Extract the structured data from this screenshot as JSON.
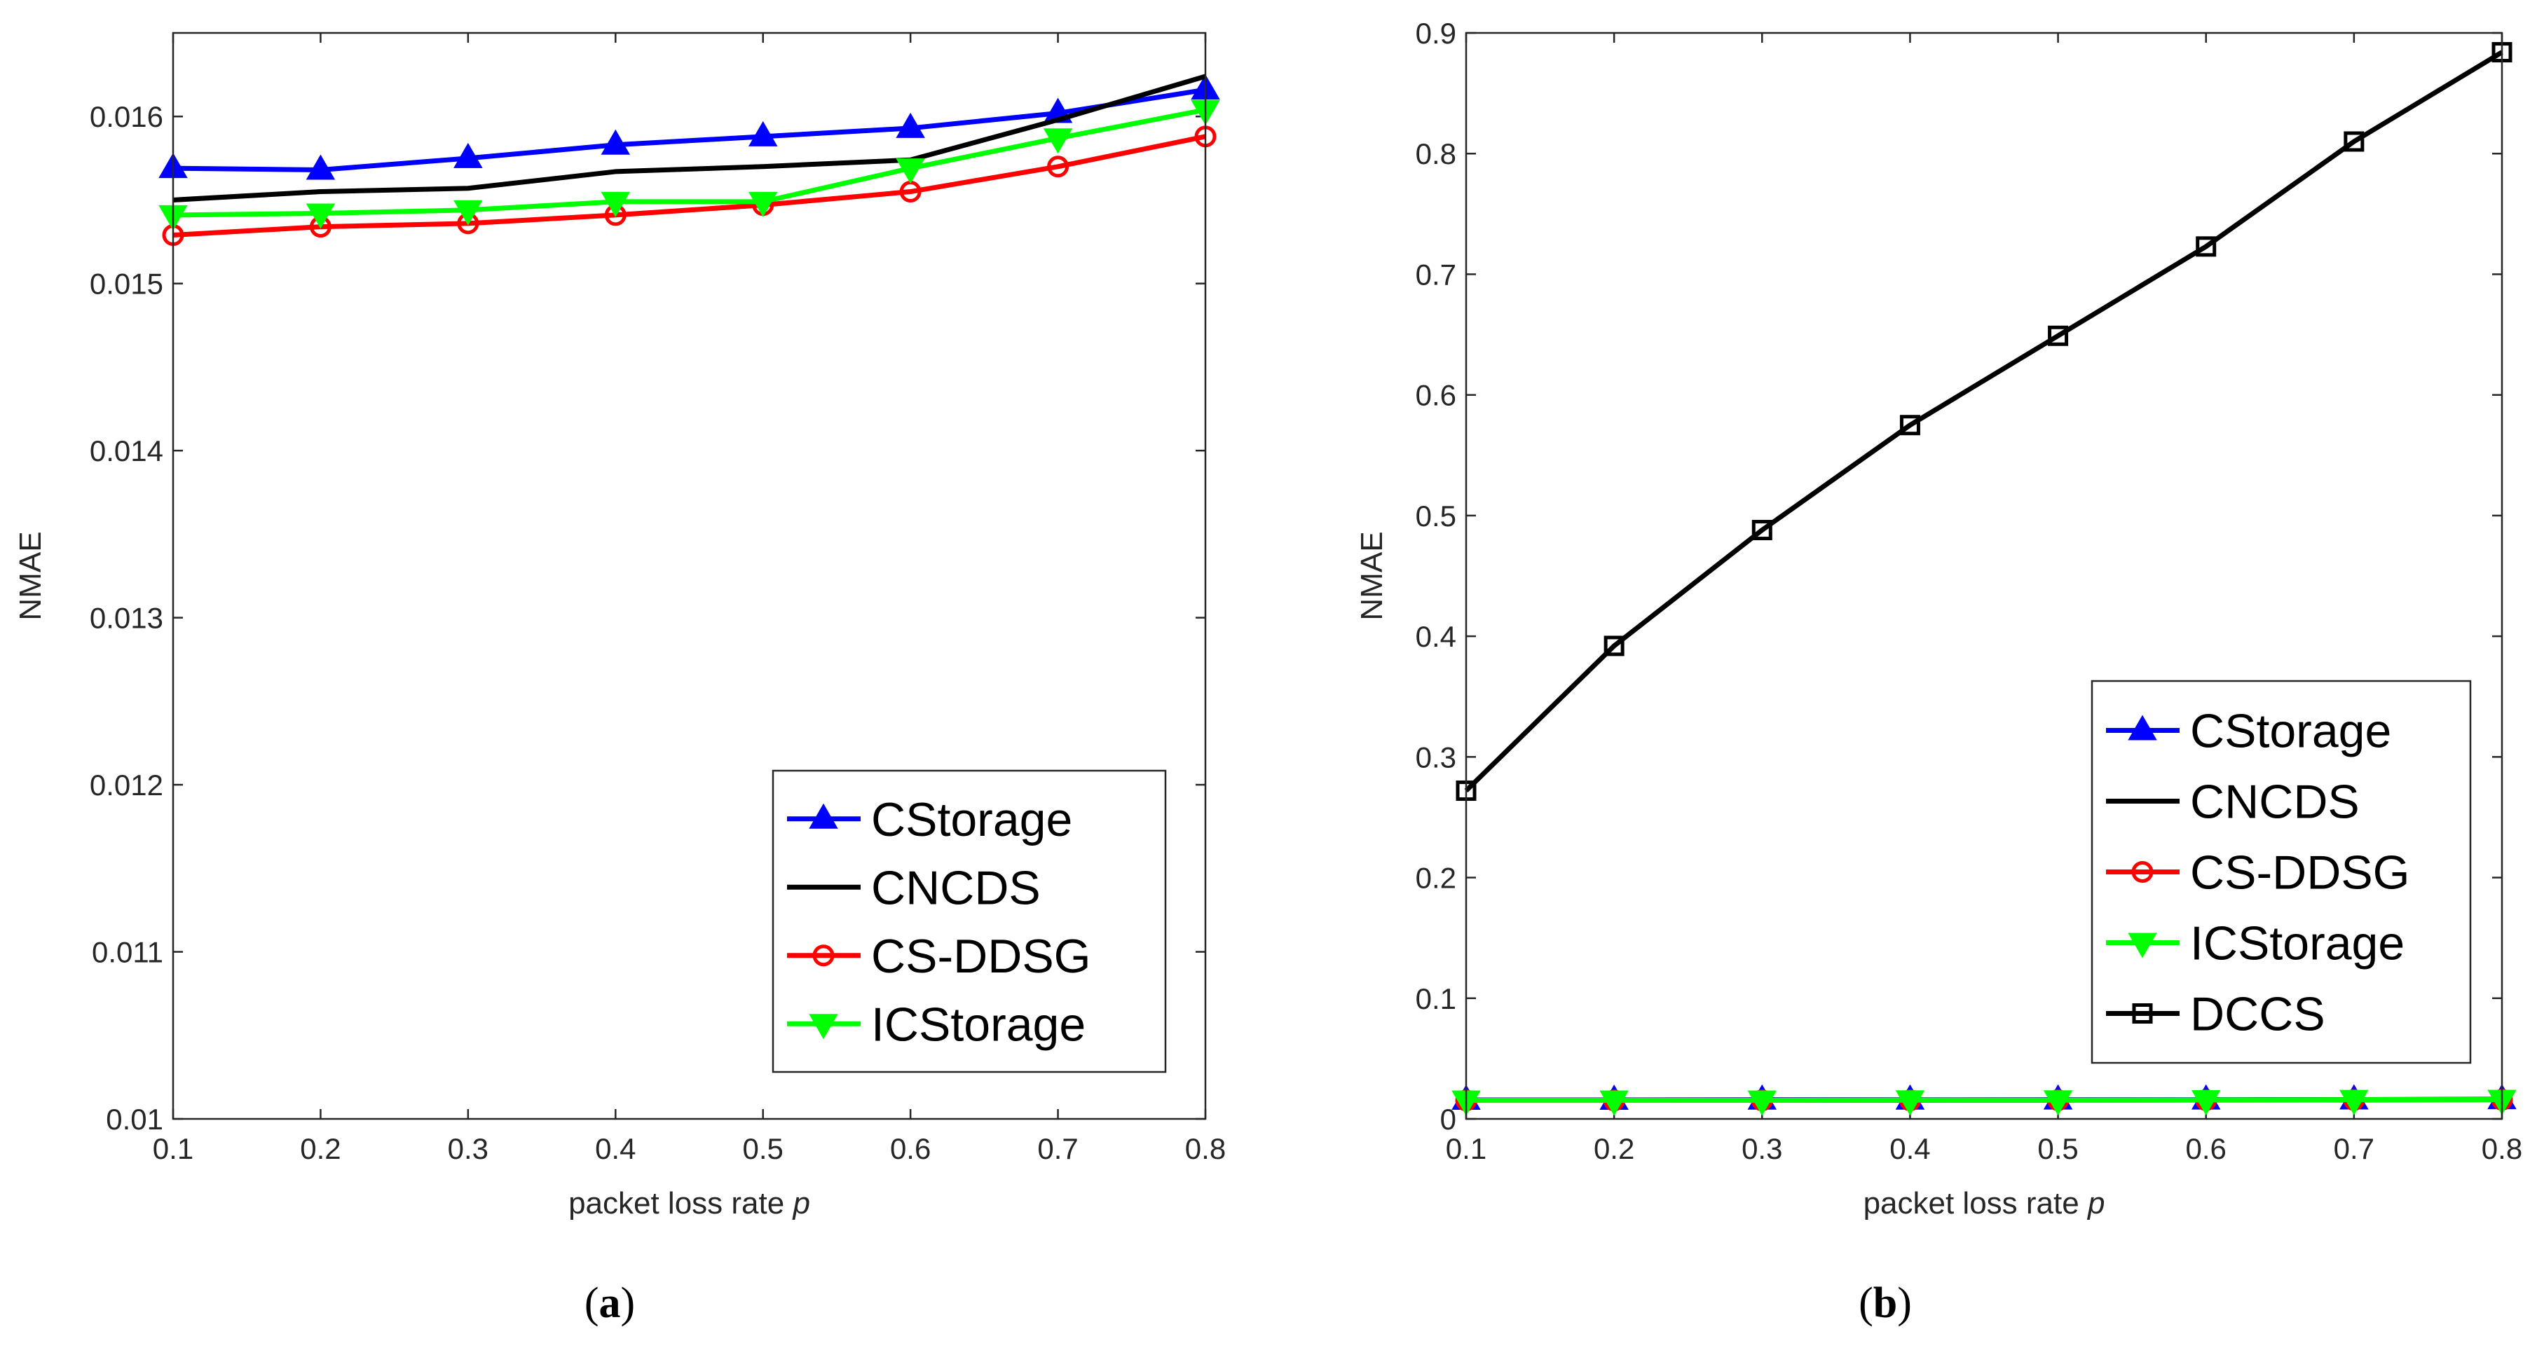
{
  "chart_data": [
    {
      "type": "line",
      "caption_letter": "a",
      "xlabel": "packet loss rate",
      "xlabel_var": "p",
      "ylabel": "NMAE",
      "xlim": [
        0.1,
        0.8
      ],
      "ylim": [
        0.01,
        0.0165
      ],
      "xticks": [
        0.1,
        0.2,
        0.3,
        0.4,
        0.5,
        0.6,
        0.7,
        0.8
      ],
      "xtick_labels": [
        "0.1",
        "0.2",
        "0.3",
        "0.4",
        "0.5",
        "0.6",
        "0.7",
        "0.8"
      ],
      "yticks": [
        0.01,
        0.011,
        0.012,
        0.013,
        0.014,
        0.015,
        0.016
      ],
      "ytick_labels": [
        "0.01",
        "0.011",
        "0.012",
        "0.013",
        "0.014",
        "0.015",
        "0.016"
      ],
      "legend_position": "bottom-right",
      "x": [
        0.1,
        0.2,
        0.3,
        0.4,
        0.5,
        0.6,
        0.7,
        0.8
      ],
      "series": [
        {
          "name": "CStorage",
          "color": "#0000ff",
          "marker": "triangle-up",
          "values": [
            0.01569,
            0.01568,
            0.01575,
            0.01583,
            0.01588,
            0.01593,
            0.01602,
            0.01616
          ]
        },
        {
          "name": "CNCDS",
          "color": "#000000",
          "marker": "none",
          "values": [
            0.0155,
            0.01555,
            0.01557,
            0.01567,
            0.0157,
            0.01574,
            0.01598,
            0.01624
          ]
        },
        {
          "name": "CS-DDSG",
          "color": "#ff0000",
          "marker": "circle",
          "values": [
            0.01529,
            0.01534,
            0.01536,
            0.01541,
            0.01547,
            0.01555,
            0.0157,
            0.01588
          ]
        },
        {
          "name": "ICStorage",
          "color": "#00ff00",
          "marker": "triangle-down",
          "values": [
            0.01541,
            0.01542,
            0.01544,
            0.01549,
            0.01549,
            0.01569,
            0.01587,
            0.01604
          ]
        }
      ]
    },
    {
      "type": "line",
      "caption_letter": "b",
      "xlabel": "packet loss rate",
      "xlabel_var": "p",
      "ylabel": "NMAE",
      "xlim": [
        0.1,
        0.8
      ],
      "ylim": [
        0,
        0.9
      ],
      "xticks": [
        0.1,
        0.2,
        0.3,
        0.4,
        0.5,
        0.6,
        0.7,
        0.8
      ],
      "xtick_labels": [
        "0.1",
        "0.2",
        "0.3",
        "0.4",
        "0.5",
        "0.6",
        "0.7",
        "0.8"
      ],
      "yticks": [
        0,
        0.1,
        0.2,
        0.3,
        0.4,
        0.5,
        0.6,
        0.7,
        0.8,
        0.9
      ],
      "ytick_labels": [
        "0",
        "0.1",
        "0.2",
        "0.3",
        "0.4",
        "0.5",
        "0.6",
        "0.7",
        "0.8",
        "0.9"
      ],
      "legend_position": "bottom-right",
      "x": [
        0.1,
        0.2,
        0.3,
        0.4,
        0.5,
        0.6,
        0.7,
        0.8
      ],
      "series": [
        {
          "name": "CStorage",
          "color": "#0000ff",
          "marker": "triangle-up",
          "values": [
            0.0157,
            0.0157,
            0.0158,
            0.0158,
            0.0159,
            0.0159,
            0.016,
            0.0162
          ]
        },
        {
          "name": "CNCDS",
          "color": "#000000",
          "marker": "none",
          "values": [
            0.0155,
            0.0156,
            0.0156,
            0.0157,
            0.0157,
            0.0157,
            0.016,
            0.0162
          ]
        },
        {
          "name": "CS-DDSG",
          "color": "#ff0000",
          "marker": "circle",
          "values": [
            0.0153,
            0.0153,
            0.0154,
            0.0154,
            0.0155,
            0.0156,
            0.0157,
            0.0159
          ]
        },
        {
          "name": "ICStorage",
          "color": "#00ff00",
          "marker": "triangle-down",
          "values": [
            0.0154,
            0.0154,
            0.0154,
            0.0155,
            0.0155,
            0.0157,
            0.0159,
            0.016
          ]
        },
        {
          "name": "DCCS",
          "color": "#000000",
          "marker": "square",
          "values": [
            0.272,
            0.392,
            0.488,
            0.575,
            0.649,
            0.723,
            0.81,
            0.884
          ]
        }
      ]
    }
  ]
}
